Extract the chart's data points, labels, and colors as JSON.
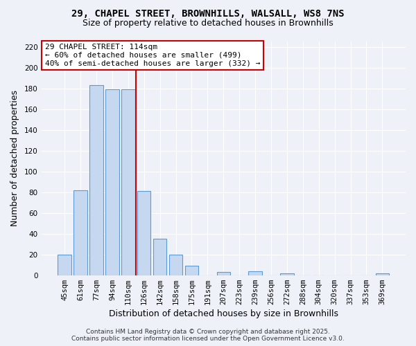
{
  "title": "29, CHAPEL STREET, BROWNHILLS, WALSALL, WS8 7NS",
  "subtitle": "Size of property relative to detached houses in Brownhills",
  "xlabel": "Distribution of detached houses by size in Brownhills",
  "ylabel": "Number of detached properties",
  "bar_labels": [
    "45sqm",
    "61sqm",
    "77sqm",
    "94sqm",
    "110sqm",
    "126sqm",
    "142sqm",
    "158sqm",
    "175sqm",
    "191sqm",
    "207sqm",
    "223sqm",
    "239sqm",
    "256sqm",
    "272sqm",
    "288sqm",
    "304sqm",
    "320sqm",
    "337sqm",
    "353sqm",
    "369sqm"
  ],
  "bar_values": [
    20,
    82,
    183,
    179,
    179,
    81,
    35,
    20,
    9,
    0,
    3,
    0,
    4,
    0,
    2,
    0,
    0,
    0,
    0,
    0,
    2
  ],
  "bar_color": "#c5d8f0",
  "bar_edge_color": "#5b9bd5",
  "ylim": [
    0,
    225
  ],
  "yticks": [
    0,
    20,
    40,
    60,
    80,
    100,
    120,
    140,
    160,
    180,
    200,
    220
  ],
  "vline_color": "#cc0000",
  "annotation_line1": "29 CHAPEL STREET: 114sqm",
  "annotation_line2": "← 60% of detached houses are smaller (499)",
  "annotation_line3": "40% of semi-detached houses are larger (332) →",
  "annotation_box_color": "#ffffff",
  "annotation_box_edge_color": "#cc0000",
  "footer_line1": "Contains HM Land Registry data © Crown copyright and database right 2025.",
  "footer_line2": "Contains public sector information licensed under the Open Government Licence v3.0.",
  "background_color": "#eef2f8",
  "grid_color": "#ffffff",
  "title_fontsize": 10,
  "subtitle_fontsize": 9,
  "axis_label_fontsize": 9,
  "tick_fontsize": 7.5,
  "footer_fontsize": 6.5,
  "annotation_fontsize": 8
}
